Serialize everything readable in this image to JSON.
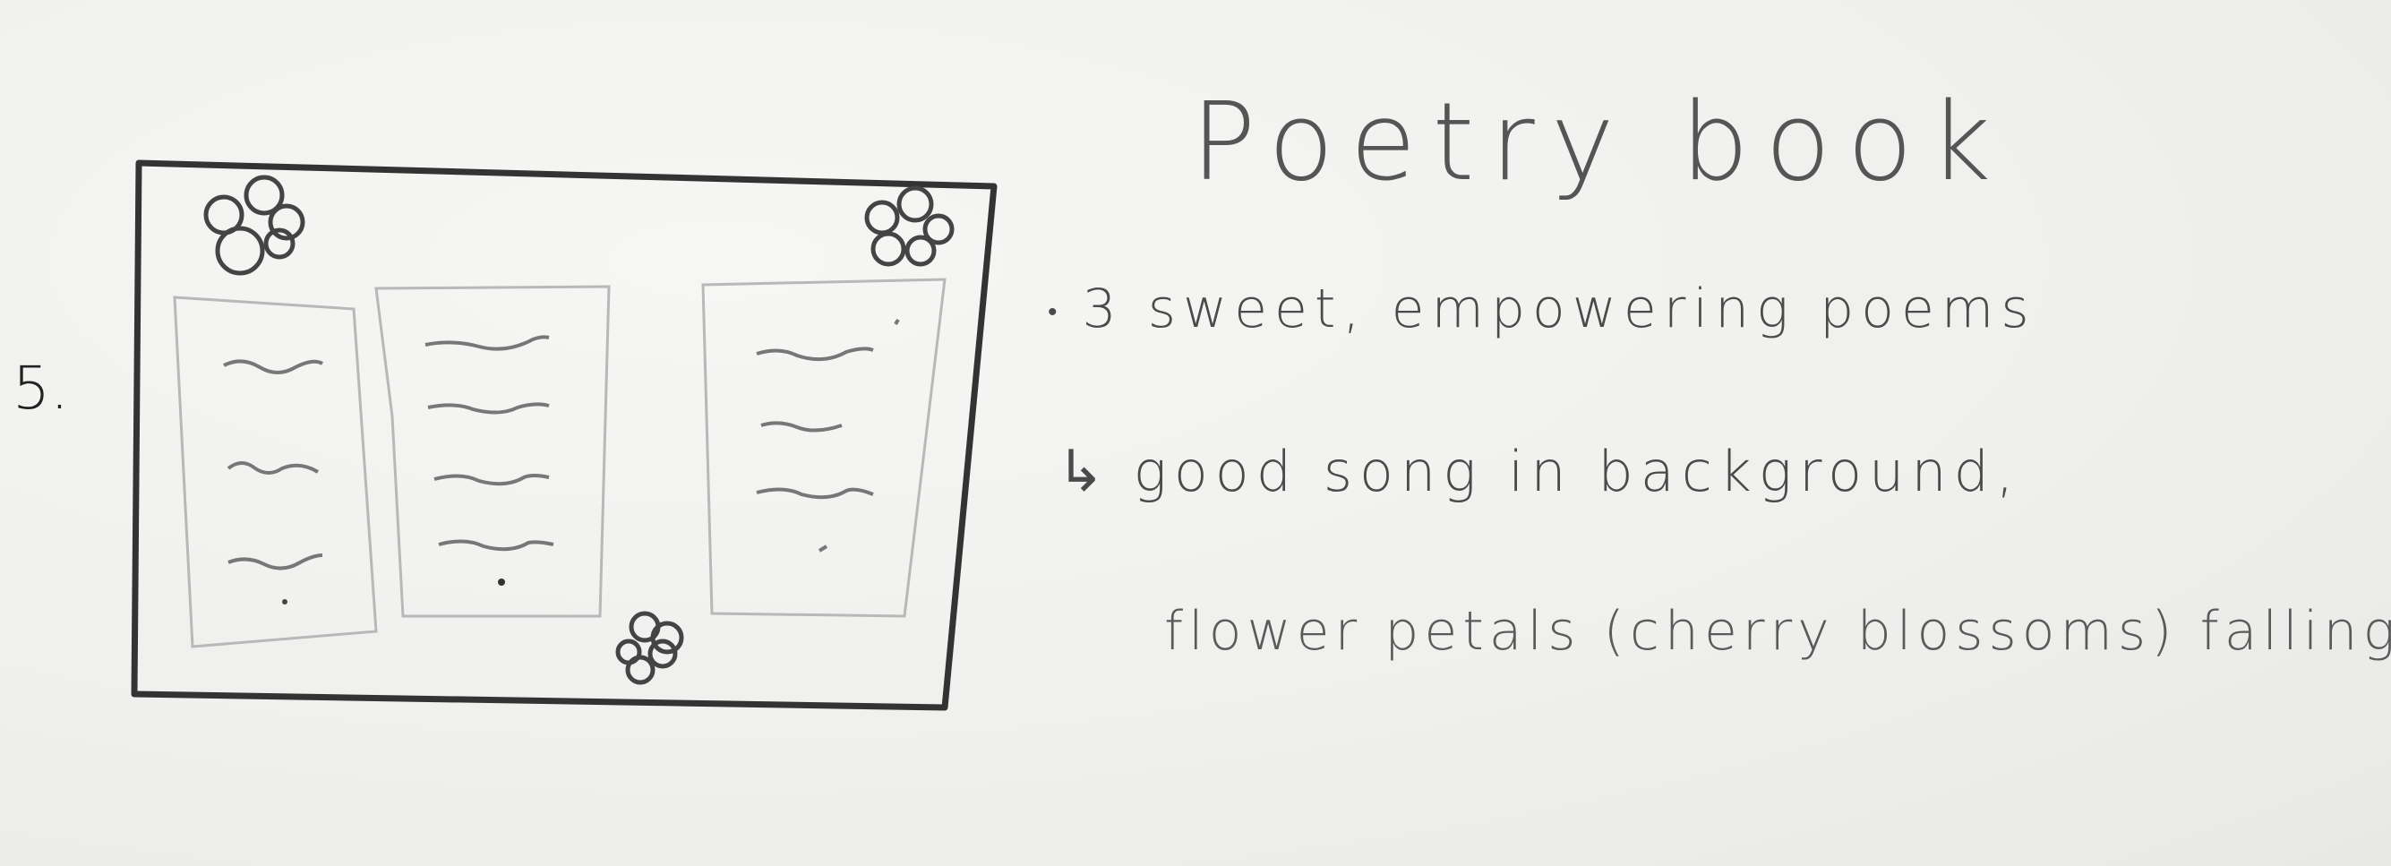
{
  "sketch": {
    "number": "5.",
    "title": "Poetry book",
    "note_line1": "3 sweet, empowering poems",
    "note_line2": "good song in background,",
    "note_line3": "flower petals (cherry blossoms) falling",
    "bullet_symbol": "•",
    "arrow_symbol": "↳"
  }
}
